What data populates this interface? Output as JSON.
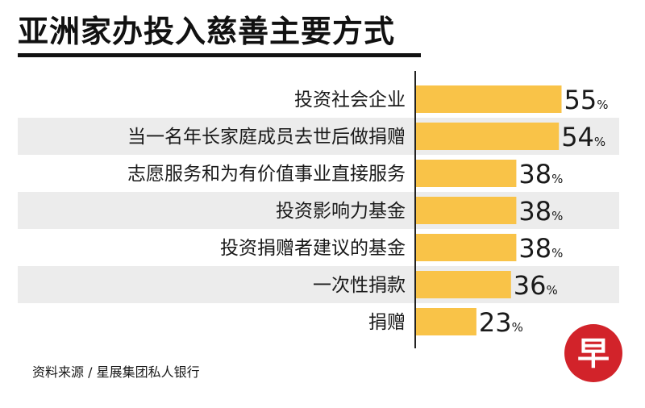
{
  "title": "亚洲家办投入慈善主要方式",
  "source": "资料来源 / 星展集团私人银行",
  "logo_text": "早",
  "colors": {
    "bar": "#f9c348",
    "band": "#ececec",
    "axis": "#222222",
    "logo": "#d2232a"
  },
  "chart_data": {
    "type": "bar",
    "orientation": "horizontal",
    "unit": "%",
    "categories": [
      "投资社会企业",
      "当一名年长家庭成员去世后做捐赠",
      "志愿服务和为有价值事业直接服务",
      "投资影响力基金",
      "投资捐赠者建议的基金",
      "一次性捐款",
      "捐赠"
    ],
    "values": [
      55,
      54,
      38,
      38,
      38,
      36,
      23
    ],
    "title": "亚洲家办投入慈善主要方式",
    "xlabel": "",
    "ylabel": "",
    "xlim": [
      0,
      100
    ],
    "grid": false
  }
}
